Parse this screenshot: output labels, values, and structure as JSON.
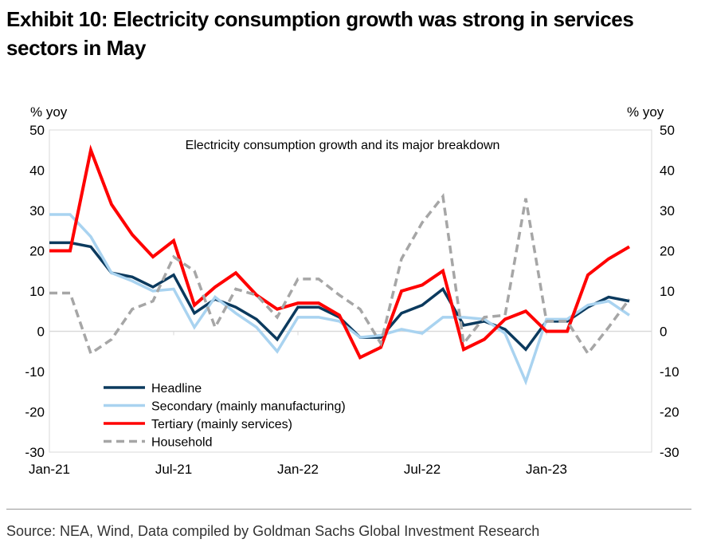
{
  "title": "Exhibit 10: Electricity consumption growth was strong in services sectors in May",
  "source": "Source: NEA, Wind, Data compiled by Goldman Sachs Global Investment Research",
  "chart_data": {
    "type": "line",
    "subtitle": "Electricity consumption growth and its major breakdown",
    "ylabel_left": "% yoy",
    "ylabel_right": "% yoy",
    "ylim": [
      -30,
      50
    ],
    "yticks": [
      50,
      40,
      30,
      20,
      10,
      0,
      -10,
      -20,
      -30
    ],
    "xticklabels": [
      "Jan-21",
      "Jul-21",
      "Jan-22",
      "Jul-22",
      "Jan-23"
    ],
    "x": [
      "Jan-21",
      "Feb-21",
      "Mar-21",
      "Apr-21",
      "May-21",
      "Jun-21",
      "Jul-21",
      "Aug-21",
      "Sep-21",
      "Oct-21",
      "Nov-21",
      "Dec-21",
      "Jan-22",
      "Feb-22",
      "Mar-22",
      "Apr-22",
      "May-22",
      "Jun-22",
      "Jul-22",
      "Aug-22",
      "Sep-22",
      "Oct-22",
      "Nov-22",
      "Dec-22",
      "Jan-23",
      "Feb-23",
      "Mar-23",
      "Apr-23",
      "May-23"
    ],
    "legend_position": "bottom-left",
    "grid": false,
    "series": [
      {
        "name": "Headline",
        "color": "#0b3a5e",
        "dash": false,
        "values": [
          22,
          22,
          21,
          14.5,
          13.5,
          11,
          14,
          4.5,
          8,
          6,
          3,
          -2,
          6,
          6,
          3.5,
          -1.5,
          -1.5,
          4.5,
          6.5,
          10.5,
          1.5,
          2.5,
          0.5,
          -4.5,
          2.5,
          2.5,
          6,
          8.5,
          7.5
        ]
      },
      {
        "name": "Secondary (mainly manufacturing)",
        "color": "#a9d3f0",
        "dash": false,
        "values": [
          29,
          29,
          23.5,
          14.5,
          12.5,
          10,
          10.5,
          1,
          8.5,
          4.5,
          1,
          -5,
          3.5,
          3.5,
          2.5,
          -1.5,
          -1,
          0.5,
          -0.5,
          3.5,
          3.5,
          3,
          -0.5,
          -12.5,
          3,
          3,
          6.5,
          7.5,
          4
        ]
      },
      {
        "name": "Tertiary (mainly services)",
        "color": "#ff0000",
        "dash": false,
        "values": [
          20,
          20,
          45,
          31.5,
          24,
          18.5,
          22.5,
          6.5,
          11,
          14.5,
          9,
          5.5,
          7,
          7,
          4,
          -6.5,
          -4,
          10,
          11.5,
          15,
          -4.5,
          -2,
          3,
          5,
          0,
          0,
          14,
          18,
          21
        ]
      },
      {
        "name": "Household",
        "color": "#a6a6a6",
        "dash": true,
        "values": [
          9.5,
          9.5,
          -5.5,
          -2,
          5.5,
          7.5,
          18.5,
          15,
          1,
          10.5,
          9,
          3.5,
          13,
          13,
          9,
          5.5,
          -3,
          18,
          27,
          33.5,
          -3,
          3.5,
          4,
          33,
          2.5,
          2.5,
          -5.5,
          1,
          8
        ]
      }
    ]
  }
}
